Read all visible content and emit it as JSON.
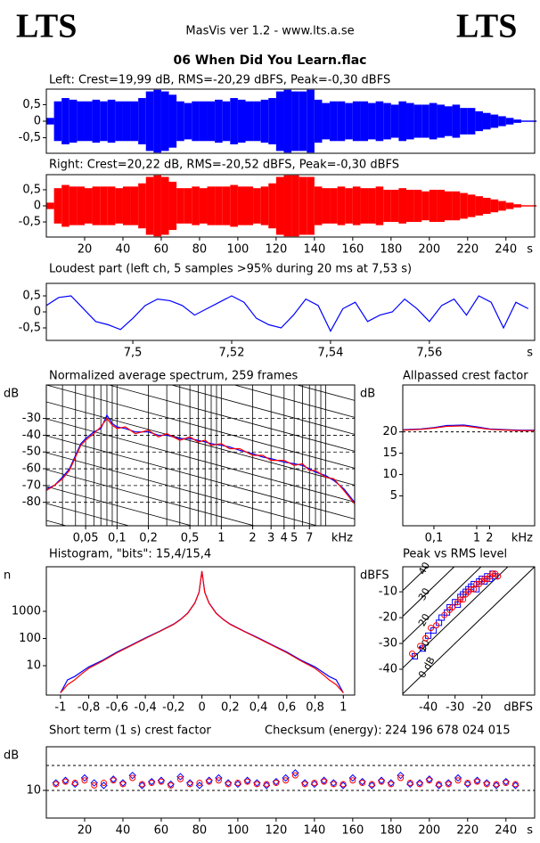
{
  "header": {
    "logo_left": "LTS",
    "logo_right": "LTS",
    "app": "MasVis ver 1.2 - www.lts.a.se",
    "file": "06 When Did You Learn.flac"
  },
  "chart_data": [
    {
      "type": "waveform",
      "title": "Left: Crest=19,99 dB, RMS=-20,29 dBFS, Peak=-0,30 dBFS",
      "xlim": [
        0,
        255
      ],
      "ylim": [
        -0.97,
        0.97
      ],
      "yticks": [
        {
          "value": 0.5,
          "label": "0,5"
        },
        0,
        {
          "value": -0.5,
          "label": "-0,5"
        }
      ],
      "x": [
        2,
        6,
        10,
        14,
        18,
        22,
        26,
        30,
        34,
        38,
        42,
        46,
        50,
        54,
        58,
        62,
        66,
        70,
        74,
        78,
        82,
        86,
        90,
        94,
        98,
        102,
        106,
        110,
        114,
        118,
        122,
        126,
        130,
        134,
        138,
        142,
        146,
        150,
        154,
        158,
        162,
        166,
        170,
        174,
        178,
        182,
        186,
        190,
        194,
        198,
        202,
        206,
        210,
        214,
        218,
        222,
        226,
        230,
        234,
        238,
        242,
        246,
        250,
        254
      ],
      "series": [
        {
          "color": "#0000ff",
          "values": [
            0.1,
            0.6,
            0.7,
            0.65,
            0.6,
            0.6,
            0.65,
            0.6,
            0.65,
            0.6,
            0.6,
            0.6,
            0.7,
            0.9,
            0.95,
            0.9,
            0.8,
            0.6,
            0.55,
            0.6,
            0.6,
            0.6,
            0.65,
            0.6,
            0.7,
            0.65,
            0.6,
            0.6,
            0.65,
            0.7,
            0.9,
            0.95,
            0.9,
            0.9,
            0.95,
            0.65,
            0.55,
            0.6,
            0.6,
            0.55,
            0.6,
            0.6,
            0.55,
            0.6,
            0.55,
            0.5,
            0.6,
            0.55,
            0.5,
            0.5,
            0.55,
            0.5,
            0.45,
            0.5,
            0.4,
            0.4,
            0.3,
            0.25,
            0.2,
            0.15,
            0.1,
            0.05,
            0.02,
            0.02
          ]
        }
      ]
    },
    {
      "type": "waveform",
      "title": "Right: Crest=20,22 dB, RMS=-20,52 dBFS, Peak=-0,30 dBFS",
      "xlim": [
        0,
        255
      ],
      "ylim": [
        -0.97,
        0.97
      ],
      "yticks": [
        {
          "value": 0.5,
          "label": "0,5"
        },
        0,
        {
          "value": -0.5,
          "label": "-0,5"
        }
      ],
      "xticks": [
        20,
        40,
        60,
        80,
        100,
        120,
        140,
        160,
        180,
        200,
        220,
        240
      ],
      "x_unit": "s",
      "x": [
        2,
        6,
        10,
        14,
        18,
        22,
        26,
        30,
        34,
        38,
        42,
        46,
        50,
        54,
        58,
        62,
        66,
        70,
        74,
        78,
        82,
        86,
        90,
        94,
        98,
        102,
        106,
        110,
        114,
        118,
        122,
        126,
        130,
        134,
        138,
        142,
        146,
        150,
        154,
        158,
        162,
        166,
        170,
        174,
        178,
        182,
        186,
        190,
        194,
        198,
        202,
        206,
        210,
        214,
        218,
        222,
        226,
        230,
        234,
        238,
        242,
        246,
        250,
        254
      ],
      "series": [
        {
          "color": "#ff0000",
          "values": [
            0.1,
            0.55,
            0.65,
            0.6,
            0.6,
            0.55,
            0.6,
            0.6,
            0.6,
            0.55,
            0.6,
            0.6,
            0.7,
            0.9,
            0.95,
            0.9,
            0.75,
            0.55,
            0.55,
            0.6,
            0.55,
            0.6,
            0.6,
            0.6,
            0.65,
            0.6,
            0.6,
            0.55,
            0.6,
            0.7,
            0.9,
            0.95,
            0.95,
            0.9,
            0.9,
            0.6,
            0.55,
            0.55,
            0.6,
            0.55,
            0.6,
            0.55,
            0.55,
            0.6,
            0.5,
            0.5,
            0.55,
            0.5,
            0.5,
            0.45,
            0.5,
            0.5,
            0.45,
            0.45,
            0.4,
            0.35,
            0.3,
            0.25,
            0.2,
            0.15,
            0.1,
            0.05,
            0.02,
            0.02
          ]
        }
      ]
    },
    {
      "type": "line",
      "title": "Loudest part (left  ch, 5 samples >95% during 20 ms at 7,53 s)",
      "xlim": [
        7.4825,
        7.5813
      ],
      "ylim": [
        -0.89,
        0.89
      ],
      "yticks": [
        {
          "value": 0.5,
          "label": "0,5"
        },
        0,
        {
          "value": -0.5,
          "label": "-0,5"
        }
      ],
      "xticks": [
        {
          "value": 7.5,
          "label": "7,5"
        },
        {
          "value": 7.52,
          "label": "7,52"
        },
        {
          "value": 7.54,
          "label": "7,54"
        },
        {
          "value": 7.56,
          "label": "7,56"
        }
      ],
      "x_unit": "s",
      "x": [
        7.4825,
        7.485,
        7.4875,
        7.49,
        7.4925,
        7.495,
        7.4975,
        7.5,
        7.5025,
        7.505,
        7.5075,
        7.51,
        7.5125,
        7.515,
        7.5175,
        7.52,
        7.5225,
        7.525,
        7.5275,
        7.53,
        7.5325,
        7.535,
        7.5375,
        7.54,
        7.5425,
        7.545,
        7.5475,
        7.55,
        7.5525,
        7.555,
        7.5575,
        7.56,
        7.5625,
        7.565,
        7.5675,
        7.57,
        7.5725,
        7.575,
        7.5775,
        7.58
      ],
      "series": [
        {
          "color": "#0000ff",
          "values": [
            0.2,
            0.45,
            0.5,
            0.1,
            -0.3,
            -0.4,
            -0.55,
            -0.2,
            0.2,
            0.4,
            0.35,
            0.2,
            -0.1,
            0.1,
            0.3,
            0.5,
            0.3,
            -0.2,
            -0.4,
            -0.5,
            -0.1,
            0.4,
            0.2,
            -0.6,
            0.1,
            0.3,
            -0.3,
            -0.1,
            0.0,
            0.4,
            0.1,
            -0.3,
            0.2,
            0.4,
            -0.1,
            0.5,
            0.3,
            -0.5,
            0.3,
            0.1
          ]
        }
      ]
    },
    {
      "type": "line",
      "title": "Normalized average spectrum, 259 frames",
      "y_unit": "dB",
      "xlim": [
        0.021,
        19
      ],
      "xlog": true,
      "ylim": [
        -94,
        -10
      ],
      "grid": "dashed",
      "diagonal_grid": true,
      "yticks": [
        -30,
        -40,
        -50,
        -60,
        -70,
        -80
      ],
      "xticks": [
        {
          "value": 0.05,
          "label": "0,05"
        },
        {
          "value": 0.1,
          "label": "0,1"
        },
        {
          "value": 0.2,
          "label": "0,2"
        },
        {
          "value": 0.5,
          "label": "0,5"
        },
        1,
        2,
        3,
        4,
        5,
        7
      ],
      "x_unit": "kHz",
      "xgrid": [
        0.03,
        0.04,
        0.05,
        0.06,
        0.07,
        0.08,
        0.09,
        0.1,
        0.2,
        0.3,
        0.4,
        0.5,
        0.6,
        0.7,
        0.8,
        0.9,
        1,
        2,
        3,
        4,
        5,
        6,
        7,
        8,
        9,
        10
      ],
      "x": [
        0.021,
        0.025,
        0.03,
        0.035,
        0.04,
        0.045,
        0.05,
        0.06,
        0.07,
        0.08,
        0.09,
        0.1,
        0.12,
        0.15,
        0.2,
        0.25,
        0.3,
        0.4,
        0.5,
        0.6,
        0.7,
        0.8,
        1,
        1.2,
        1.5,
        2,
        2.5,
        3,
        4,
        5,
        6,
        7,
        8,
        10,
        12,
        15,
        19
      ],
      "series": [
        {
          "color": "#0000ff",
          "values": [
            -72,
            -70,
            -65,
            -60,
            -52,
            -45,
            -42,
            -38,
            -36,
            -28,
            -33,
            -35,
            -36,
            -38,
            -38,
            -40,
            -40,
            -42,
            -42,
            -43,
            -44,
            -45,
            -46,
            -47,
            -49,
            -51,
            -53,
            -54,
            -56,
            -57,
            -58,
            -60,
            -62,
            -64,
            -67,
            -72,
            -80
          ]
        },
        {
          "color": "#ff0000",
          "values": [
            -73,
            -70,
            -66,
            -61,
            -53,
            -46,
            -43,
            -39,
            -35,
            -30,
            -34,
            -36,
            -35,
            -39,
            -37,
            -41,
            -39,
            -43,
            -41,
            -44,
            -43,
            -46,
            -45,
            -48,
            -48,
            -52,
            -52,
            -55,
            -55,
            -58,
            -57,
            -61,
            -61,
            -65,
            -66,
            -73,
            -81
          ]
        }
      ]
    },
    {
      "type": "line",
      "title": "Allpassed crest factor",
      "y_unit": "dB",
      "xlim": [
        0.0187,
        22.6
      ],
      "xlog": true,
      "ylim": [
        -2,
        31
      ],
      "yticks": [
        5,
        10,
        15,
        20
      ],
      "dashed_levels": [
        20
      ],
      "xticks": [
        {
          "value": 0.1,
          "label": "0,1"
        },
        1,
        2
      ],
      "x_unit": "kHz",
      "x": [
        0.019,
        0.05,
        0.1,
        0.2,
        0.5,
        1,
        2,
        5,
        10,
        22
      ],
      "series": [
        {
          "color": "#0000ff",
          "values": [
            20.5,
            20.7,
            21,
            21.5,
            21.6,
            21.2,
            20.7,
            20.5,
            20.4,
            20.4
          ]
        },
        {
          "color": "#ff0000",
          "values": [
            20.4,
            20.6,
            20.9,
            21.3,
            21.4,
            21,
            20.6,
            20.4,
            20.3,
            20.3
          ]
        }
      ]
    },
    {
      "type": "line",
      "title": "Histogram, \"bits\": 15,4/15,4",
      "y_unit": "n",
      "xlim": [
        -1.1,
        1.08
      ],
      "ylim": [
        0.83,
        43600
      ],
      "ylog": true,
      "yticks": [
        10,
        100,
        1000
      ],
      "xticks": [
        -1,
        {
          "value": -0.8,
          "label": "-0,8"
        },
        {
          "value": -0.6,
          "label": "-0,6"
        },
        {
          "value": -0.4,
          "label": "-0,4"
        },
        {
          "value": -0.2,
          "label": "-0,2"
        },
        0,
        {
          "value": 0.2,
          "label": "0,2"
        },
        {
          "value": 0.4,
          "label": "0,4"
        },
        {
          "value": 0.6,
          "label": "0,6"
        },
        {
          "value": 0.8,
          "label": "0,8"
        },
        1
      ],
      "x": [
        -1.0,
        -0.95,
        -0.9,
        -0.85,
        -0.8,
        -0.7,
        -0.6,
        -0.5,
        -0.4,
        -0.3,
        -0.2,
        -0.15,
        -0.1,
        -0.05,
        -0.02,
        0,
        0.02,
        0.05,
        0.1,
        0.15,
        0.2,
        0.3,
        0.4,
        0.5,
        0.6,
        0.7,
        0.8,
        0.85,
        0.9,
        0.95,
        1.0
      ],
      "series": [
        {
          "color": "#0000ff",
          "values": [
            1,
            3,
            4,
            6,
            9,
            16,
            32,
            57,
            105,
            185,
            340,
            510,
            870,
            2050,
            5100,
            30000,
            5100,
            2050,
            870,
            510,
            340,
            185,
            105,
            57,
            32,
            16,
            9,
            6,
            4,
            3,
            1
          ]
        },
        {
          "color": "#ff0000",
          "values": [
            1,
            2,
            3,
            5,
            8,
            15,
            30,
            55,
            100,
            180,
            330,
            500,
            850,
            2000,
            5000,
            30000,
            5000,
            2000,
            850,
            500,
            330,
            180,
            100,
            55,
            30,
            15,
            8,
            5,
            3,
            2,
            1
          ]
        }
      ]
    },
    {
      "type": "scatter",
      "title": "Peak vs RMS level",
      "y_unit": "dBFS",
      "xlim": [
        -49.5,
        -0.3
      ],
      "ylim": [
        -50,
        -0.3
      ],
      "yticks": [
        -10,
        -20,
        -30,
        -40
      ],
      "xticks": [
        -40,
        -30,
        -20
      ],
      "x_unit": "dBFS",
      "crest_lines": [
        {
          "value": 0,
          "label": "0 dB"
        },
        10,
        20,
        30,
        40
      ],
      "series": [
        {
          "color": "#0000ff",
          "marker": "square",
          "x": [
            -45,
            -42,
            -40,
            -38,
            -36,
            -35,
            -33,
            -32,
            -30,
            -29,
            -28,
            -27,
            -26,
            -25,
            -24,
            -23,
            -22,
            -21,
            -20,
            -19,
            -18,
            -17,
            -16,
            -15
          ],
          "values": [
            -35,
            -32,
            -27,
            -25,
            -22,
            -20,
            -18,
            -16,
            -14,
            -15,
            -12,
            -11,
            -10,
            -9,
            -8,
            -7,
            -9,
            -6,
            -5,
            -6,
            -4,
            -5,
            -3,
            -4
          ]
        },
        {
          "color": "#ff0000",
          "marker": "circle",
          "x": [
            -46,
            -43,
            -41,
            -39,
            -37,
            -34,
            -32,
            -31,
            -29,
            -28,
            -27,
            -26,
            -25,
            -24,
            -23,
            -22,
            -21,
            -20,
            -19,
            -18,
            -17,
            -16,
            -15,
            -14
          ],
          "values": [
            -34,
            -31,
            -28,
            -24,
            -23,
            -19,
            -17,
            -16,
            -14,
            -13,
            -13,
            -11,
            -10,
            -9,
            -9,
            -7,
            -7,
            -6,
            -5,
            -5,
            -4,
            -3,
            -3,
            -4
          ]
        }
      ]
    },
    {
      "type": "scatter",
      "title": "Short term (1 s) crest factor",
      "y_unit": "dB",
      "annotations": [
        "Checksum (energy):",
        "224 196 678 024 015"
      ],
      "xlim": [
        0,
        255
      ],
      "ylim": [
        -1.1,
        27.5
      ],
      "yticks": [
        10
      ],
      "dashed_levels": [
        10,
        20
      ],
      "xticks": [
        20,
        40,
        60,
        80,
        100,
        120,
        140,
        160,
        180,
        200,
        220,
        240
      ],
      "x_unit": "s",
      "x": [
        5,
        10,
        15,
        20,
        25,
        30,
        35,
        40,
        45,
        50,
        55,
        60,
        65,
        70,
        75,
        80,
        85,
        90,
        95,
        100,
        105,
        110,
        115,
        120,
        125,
        130,
        135,
        140,
        145,
        150,
        155,
        160,
        165,
        170,
        175,
        180,
        185,
        190,
        195,
        200,
        205,
        210,
        215,
        220,
        225,
        230,
        235,
        240,
        245
      ],
      "series": [
        {
          "color": "#0000ff",
          "marker": "diamond",
          "values": [
            13,
            14,
            12.5,
            15,
            13,
            12,
            14.5,
            13,
            16,
            12,
            13.5,
            14,
            12.5,
            15.5,
            13,
            12,
            14,
            15,
            13,
            12.5,
            14,
            13,
            12,
            13.5,
            15,
            17,
            13,
            12.5,
            14,
            13,
            12,
            15,
            13.5,
            12,
            14,
            13,
            16,
            12.5,
            13,
            14.5,
            12,
            13,
            15,
            12.5,
            14,
            13,
            12,
            13.5,
            12
          ]
        },
        {
          "color": "#ff0000",
          "marker": "circle",
          "values": [
            12.5,
            13.5,
            13,
            14,
            12,
            13,
            14,
            12.5,
            15,
            12.5,
            13,
            13.5,
            12,
            14.5,
            12.5,
            13,
            13.5,
            14,
            12.5,
            13,
            13.5,
            12.5,
            12.5,
            13,
            14,
            16,
            12.5,
            13,
            13.5,
            12.5,
            12.5,
            14,
            13,
            12.5,
            13.5,
            12.5,
            15,
            13,
            12.5,
            14,
            12.5,
            12.5,
            14,
            13,
            13.5,
            12.5,
            12.5,
            13,
            12.5
          ]
        }
      ]
    }
  ]
}
